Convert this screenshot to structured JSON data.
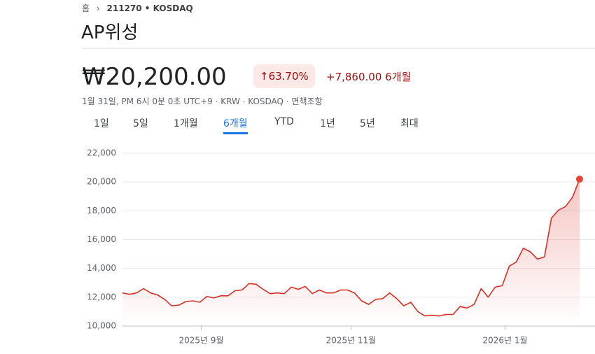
{
  "header": {
    "breadcrumb_home": "홈",
    "breadcrumb_ticker": "211270 • KOSDAQ",
    "title": "AP위성"
  },
  "quote": {
    "price": "₩20,200.00",
    "change_percent": "63.70%",
    "change": "+7,860.00",
    "period": "6개월",
    "meta": "1월 31일, PM 6시 0분 0초 UTC+9 · KRW · KOSDAQ · 면책조항"
  },
  "tabs": {
    "items": [
      "1일",
      "5일",
      "1개월",
      "6개월",
      "YTD",
      "1년",
      "5년",
      "최대"
    ],
    "selected": 3
  },
  "chart_data": {
    "type": "line",
    "color": "#d93025",
    "values": [
      12300,
      12200,
      12300,
      12600,
      12300,
      12150,
      11850,
      11400,
      11450,
      11700,
      11750,
      11650,
      12050,
      11950,
      12100,
      12100,
      12450,
      12500,
      12950,
      12900,
      12550,
      12250,
      12300,
      12250,
      12700,
      12550,
      12750,
      12250,
      12500,
      12300,
      12300,
      12500,
      12500,
      12300,
      11750,
      11500,
      11850,
      11900,
      12300,
      11900,
      11400,
      11650,
      11000,
      10700,
      10750,
      10700,
      10800,
      10800,
      11350,
      11250,
      11500,
      12600,
      12000,
      12700,
      12800,
      14150,
      14450,
      15400,
      15150,
      14650,
      14800,
      17500,
      18050,
      18300,
      18950,
      20200
    ],
    "xlim": [
      0,
      65
    ],
    "xticks": [
      {
        "value": 11.2,
        "label": "2025년 9월"
      },
      {
        "value": 32.5,
        "label": "2025년 11월"
      },
      {
        "value": 54.4,
        "label": "2026년 1월"
      }
    ],
    "ylim": [
      10000,
      22000
    ],
    "yticks": [
      {
        "value": 10000,
        "label": "10,000"
      },
      {
        "value": 12000,
        "label": "12,000"
      },
      {
        "value": 14000,
        "label": "14,000"
      },
      {
        "value": 16000,
        "label": "16,000"
      },
      {
        "value": 18000,
        "label": "18,000"
      },
      {
        "value": 20000,
        "label": "20,000"
      },
      {
        "value": 22000,
        "label": "22,000"
      }
    ],
    "grid": true
  }
}
